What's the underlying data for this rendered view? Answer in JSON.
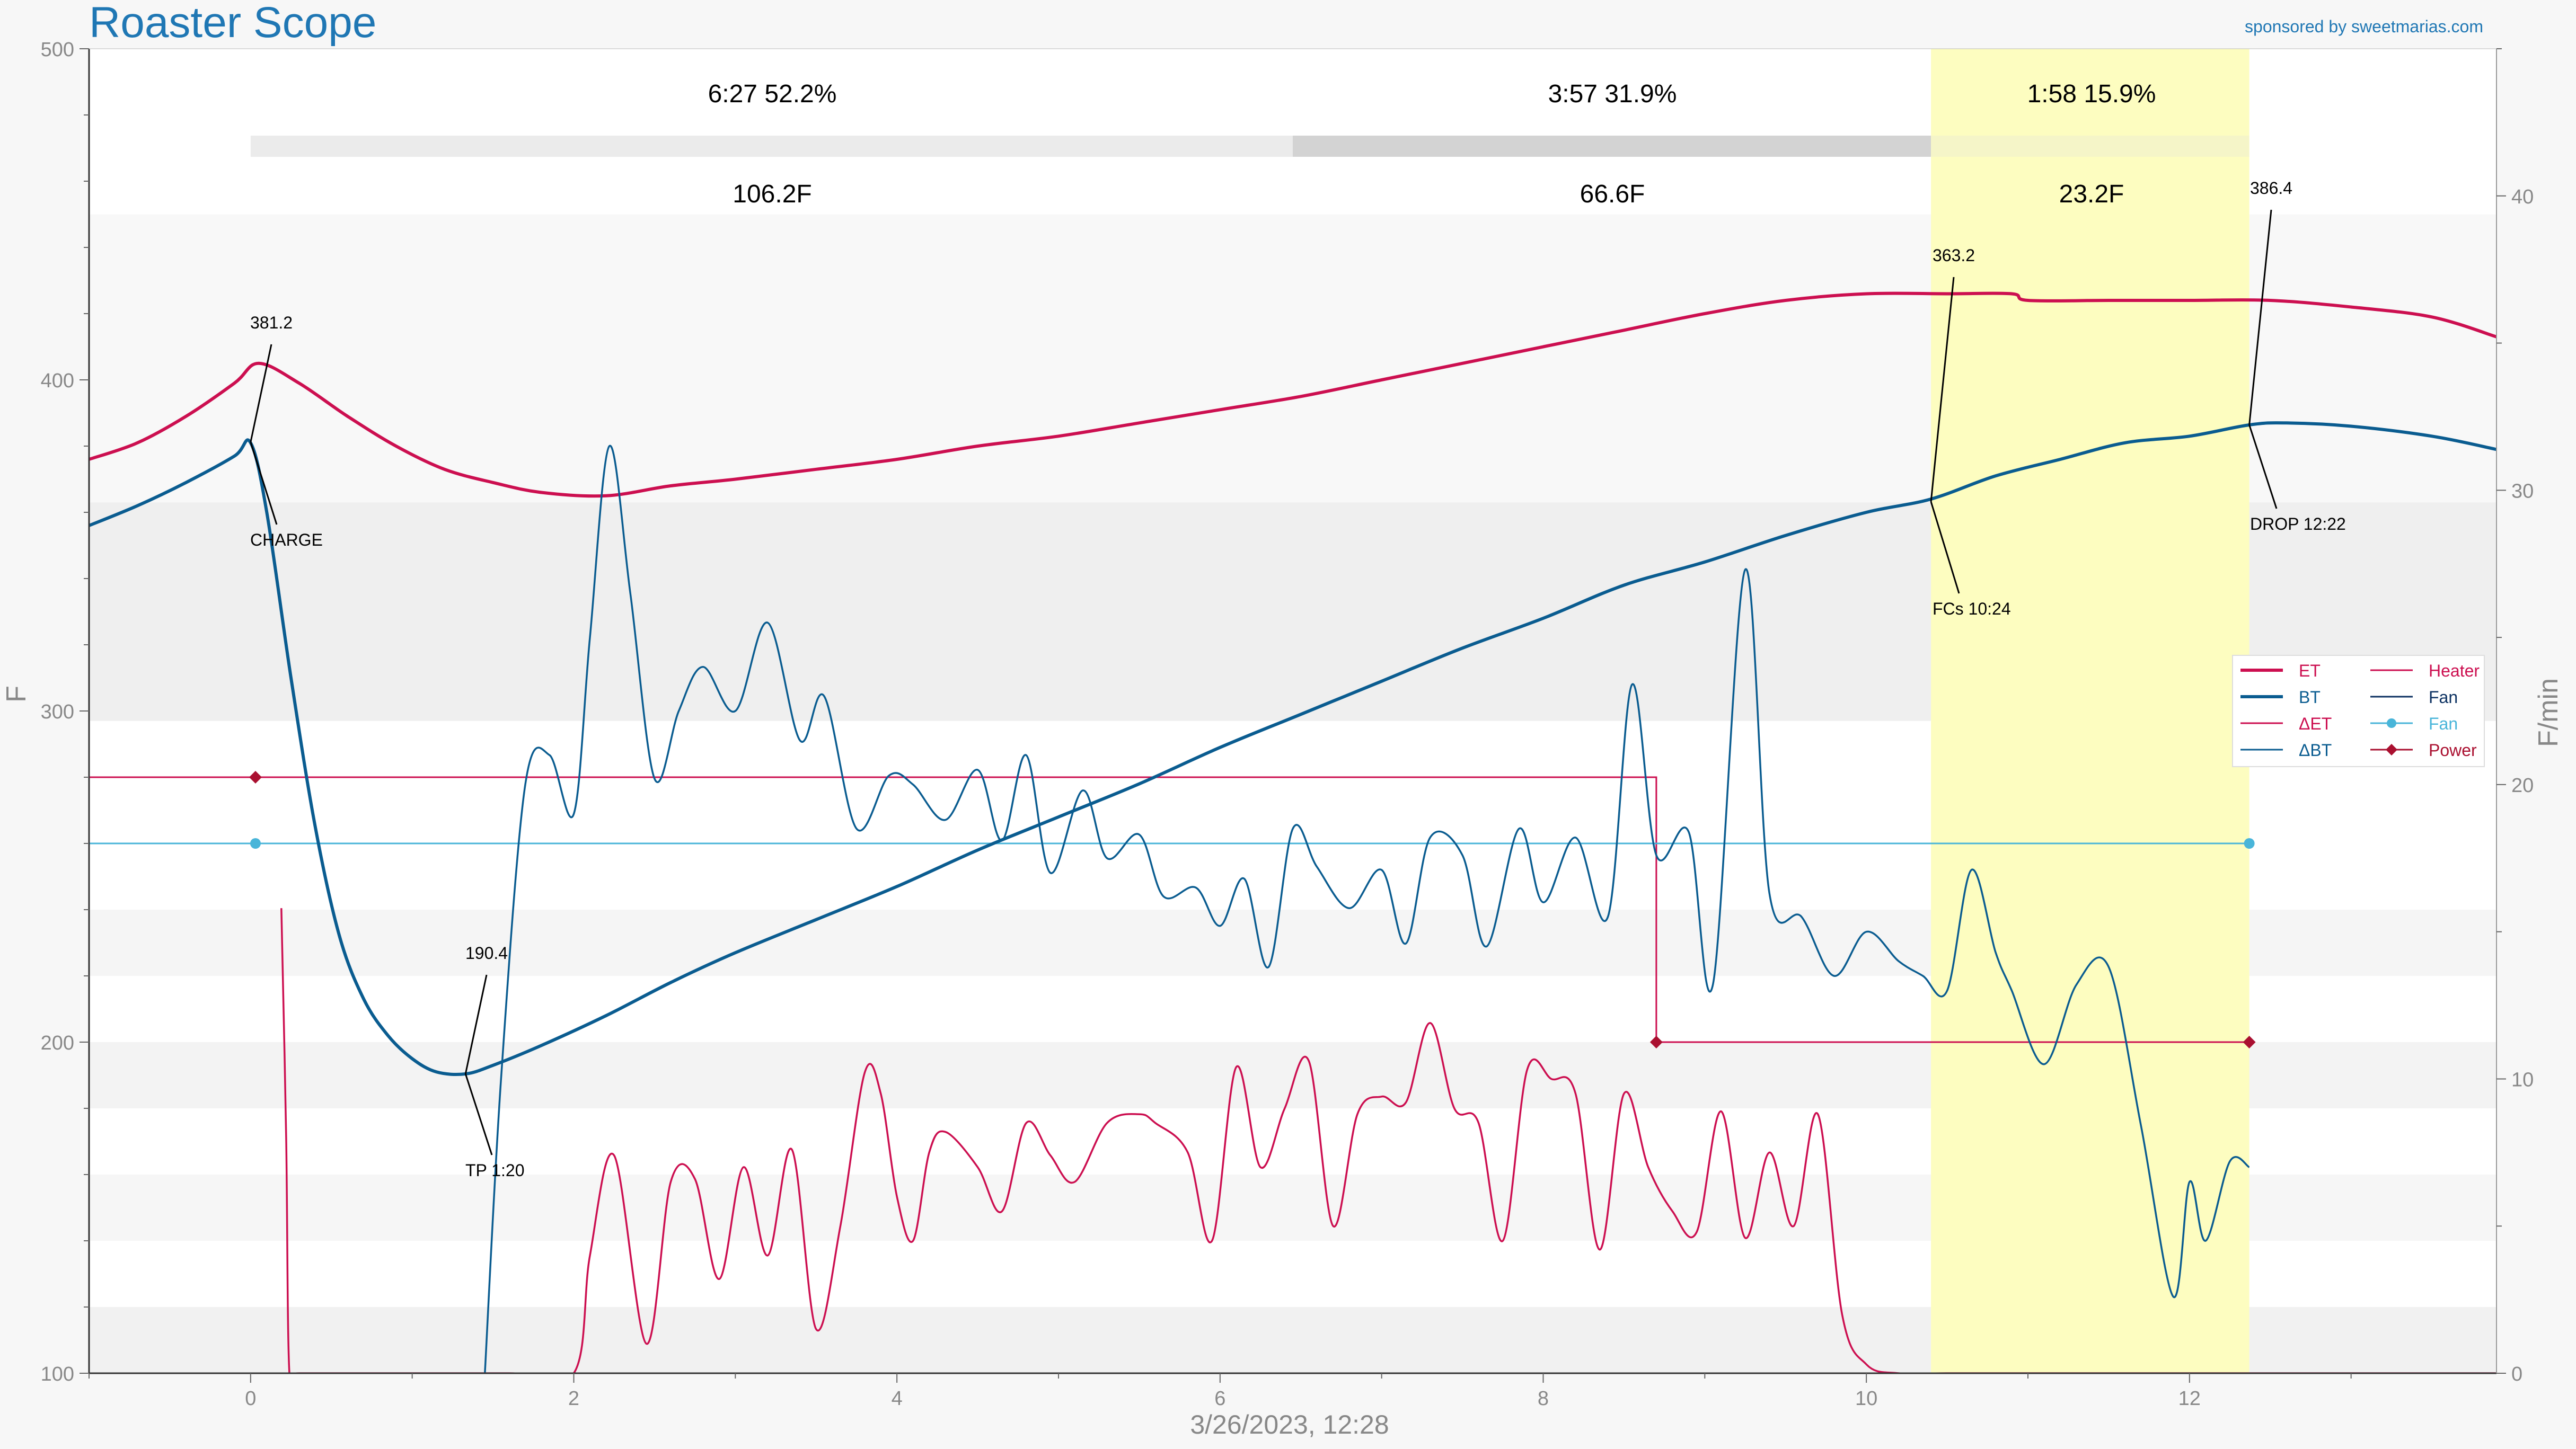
{
  "app": {
    "title": "Roaster Scope",
    "sponsor": "sponsored by sweetmarias.com",
    "timestamp": "3/26/2023, 12:28"
  },
  "colors": {
    "et": "#cc0f50",
    "bt": "#0a5c90",
    "delta_et": "#cc0f50",
    "delta_bt": "#0a5c90",
    "heater": "#cc0f50",
    "fan_control": "#0c3161",
    "fan": "#49b5d9",
    "power": "#aa1030",
    "title": "#1f77b4",
    "dev_band": "#fdfdc0"
  },
  "phases": [
    {
      "time": "6:27",
      "pct": "52.2%",
      "rise": "106.2F",
      "start": 0,
      "end": 6.45,
      "shade": "#ebebeb"
    },
    {
      "time": "3:57",
      "pct": "31.9%",
      "rise": "66.6F",
      "start": 6.45,
      "end": 10.4,
      "shade": "#d3d3d3"
    },
    {
      "time": "1:58",
      "pct": "15.9%",
      "rise": "23.2F",
      "start": 10.4,
      "end": 12.37,
      "shade": "#f5f5c8"
    }
  ],
  "events": [
    {
      "label": "CHARGE",
      "value": "381.2",
      "t": 0.0,
      "temp": 381.2
    },
    {
      "label": "TP 1:20",
      "value": "190.4",
      "t": 1.33,
      "temp": 190.4
    },
    {
      "label": "FCs 10:24",
      "value": "363.2",
      "t": 10.4,
      "temp": 363.2
    },
    {
      "label": "DROP 12:22",
      "value": "386.4",
      "t": 12.37,
      "temp": 386.4
    }
  ],
  "legend": [
    {
      "name": "ET",
      "key": "et",
      "marker": "line-thick"
    },
    {
      "name": "BT",
      "key": "bt",
      "marker": "line-thick"
    },
    {
      "name": "ΔET",
      "key": "delta_et",
      "marker": "line"
    },
    {
      "name": "ΔBT",
      "key": "delta_bt",
      "marker": "line"
    },
    {
      "name": "Heater",
      "key": "heater",
      "marker": "line"
    },
    {
      "name": "Fan",
      "key": "fan_control",
      "marker": "line"
    },
    {
      "name": "Fan",
      "key": "fan",
      "marker": "dot"
    },
    {
      "name": "Power",
      "key": "power",
      "marker": "diamond"
    }
  ],
  "chart_data": {
    "type": "line",
    "xlabel": "3/26/2023, 12:28",
    "ylabel": "F",
    "y2label": "F/min",
    "xlim": [
      -1,
      13.9
    ],
    "ylim": [
      100,
      500
    ],
    "y2lim": [
      0,
      45
    ],
    "xticks": [
      0,
      2,
      4,
      6,
      8,
      10,
      12
    ],
    "yticks": [
      100,
      200,
      300,
      400,
      500
    ],
    "y2ticks": [
      0,
      10,
      20,
      30,
      40
    ],
    "grid": false,
    "legend_position": "right",
    "series": [
      {
        "name": "ET",
        "axis": "left",
        "key": "et",
        "width": 6,
        "x": [
          -1,
          -0.7,
          -0.4,
          -0.1,
          0.05,
          0.3,
          0.6,
          0.9,
          1.2,
          1.5,
          1.8,
          2.2,
          2.6,
          3.0,
          3.5,
          4.0,
          4.5,
          5.0,
          5.5,
          6.0,
          6.5,
          7.0,
          7.5,
          8.0,
          8.5,
          9.0,
          9.5,
          10.0,
          10.5,
          10.9,
          11.0,
          11.5,
          12.0,
          12.5,
          13.0,
          13.5,
          13.9
        ],
        "y": [
          376,
          381,
          389,
          399,
          405,
          399,
          389,
          380,
          373,
          369,
          366,
          365,
          368,
          370,
          373,
          376,
          380,
          383,
          387,
          391,
          395,
          400,
          405,
          410,
          415,
          420,
          424,
          426,
          426,
          426,
          424,
          424,
          424,
          424,
          422,
          419,
          413
        ]
      },
      {
        "name": "BT",
        "axis": "left",
        "key": "bt",
        "width": 6,
        "x": [
          -1,
          -0.7,
          -0.4,
          -0.1,
          0.0,
          0.1,
          0.25,
          0.4,
          0.55,
          0.7,
          0.85,
          1.0,
          1.15,
          1.33,
          1.5,
          1.8,
          2.2,
          2.6,
          3.0,
          3.5,
          4.0,
          4.5,
          5.0,
          5.5,
          6.0,
          6.5,
          7.0,
          7.5,
          8.0,
          8.5,
          9.0,
          9.5,
          10.0,
          10.4,
          10.8,
          11.2,
          11.6,
          12.0,
          12.37,
          12.6,
          13.0,
          13.5,
          13.9
        ],
        "y": [
          356,
          362,
          369,
          377,
          381,
          360,
          310,
          265,
          232,
          213,
          202,
          195,
          191,
          190.4,
          193,
          199,
          208,
          218,
          227,
          237,
          247,
          258,
          268,
          278,
          289,
          299,
          309,
          319,
          328,
          338,
          345,
          353,
          360,
          364,
          371,
          376,
          381,
          383,
          386.4,
          387,
          386,
          383,
          379
        ]
      },
      {
        "name": "ΔET",
        "axis": "right",
        "key": "delta_et",
        "width": 3.5,
        "x": [
          0.19,
          0.22,
          0.24,
          0.3,
          1.6,
          2.0,
          2.1,
          2.25,
          2.45,
          2.6,
          2.75,
          2.9,
          3.05,
          3.2,
          3.35,
          3.5,
          3.65,
          3.8,
          3.9,
          4.0,
          4.1,
          4.2,
          4.3,
          4.5,
          4.65,
          4.8,
          4.95,
          5.1,
          5.3,
          5.5,
          5.6,
          5.8,
          5.95,
          6.1,
          6.25,
          6.4,
          6.55,
          6.7,
          6.85,
          7.0,
          7.15,
          7.3,
          7.45,
          7.6,
          7.75,
          7.9,
          8.05,
          8.2,
          8.35,
          8.5,
          8.65,
          8.8,
          8.95,
          9.1,
          9.25,
          9.4,
          9.55,
          9.7,
          9.85,
          10.0,
          10.2,
          10.5,
          11,
          12,
          13.9
        ],
        "y": [
          15.8,
          8,
          0,
          0,
          0,
          0,
          4,
          7.4,
          1.0,
          6.5,
          6.6,
          3.2,
          7.0,
          4.0,
          7.6,
          1.5,
          5.0,
          10.2,
          9.5,
          6.0,
          4.5,
          7.5,
          8.2,
          7.0,
          5.5,
          8.5,
          7.4,
          6.5,
          8.5,
          8.8,
          8.5,
          7.5,
          4.5,
          10.4,
          7.0,
          9.0,
          10.6,
          5.0,
          8.8,
          9.4,
          9.2,
          11.9,
          9.0,
          8.5,
          4.5,
          10.3,
          10.0,
          9.5,
          4.2,
          9.5,
          7.0,
          5.5,
          4.8,
          8.9,
          4.6,
          7.5,
          5.0,
          8.8,
          2.0,
          0.3,
          0,
          0,
          0,
          0,
          0
        ]
      },
      {
        "name": "ΔBT",
        "axis": "right",
        "key": "delta_bt",
        "width": 3.5,
        "x": [
          1.45,
          1.55,
          1.7,
          1.85,
          2.0,
          2.1,
          2.22,
          2.35,
          2.5,
          2.65,
          2.8,
          3.0,
          3.2,
          3.4,
          3.55,
          3.75,
          3.95,
          4.1,
          4.3,
          4.5,
          4.65,
          4.8,
          4.95,
          5.15,
          5.3,
          5.5,
          5.65,
          5.85,
          6.0,
          6.15,
          6.3,
          6.45,
          6.6,
          6.8,
          7.0,
          7.15,
          7.3,
          7.5,
          7.65,
          7.85,
          8.0,
          8.2,
          8.4,
          8.55,
          8.7,
          8.9,
          9.05,
          9.25,
          9.4,
          9.6,
          9.8,
          10.0,
          10.2,
          10.35,
          10.5,
          10.65,
          10.8,
          10.9,
          11.1,
          11.3,
          11.5,
          11.7,
          11.9,
          12.0,
          12.1,
          12.25,
          12.37
        ],
        "y": [
          0,
          10,
          20,
          21,
          19,
          25,
          31.5,
          26.5,
          20.2,
          22.5,
          24,
          22.5,
          25.5,
          21.5,
          23,
          18.5,
          20.3,
          20,
          18.8,
          20.5,
          18.1,
          21,
          17,
          19.8,
          17.5,
          18.3,
          16.2,
          16.5,
          15.2,
          16.8,
          13.8,
          18.5,
          17.2,
          15.8,
          17.1,
          14.6,
          18.2,
          17.6,
          14.5,
          18.5,
          16.0,
          18.2,
          15.5,
          23.4,
          17.6,
          18.4,
          13.2,
          27.3,
          16.3,
          15.5,
          13.5,
          15.0,
          14.0,
          13.5,
          13.0,
          17.1,
          14.3,
          13.0,
          10.5,
          13.2,
          13.8,
          8.4,
          2.6,
          6.5,
          4.5,
          7.2,
          7.0
        ]
      }
    ],
    "controls": [
      {
        "name": "Heater",
        "axis": "left",
        "key": "heater",
        "x": [
          -1,
          8.7,
          8.7,
          12.37
        ],
        "y": [
          280,
          280,
          200,
          200
        ]
      },
      {
        "name": "Fan",
        "axis": "left",
        "key": "fan",
        "x": [
          -1,
          12.37
        ],
        "y": [
          260,
          260
        ]
      },
      {
        "name": "Power",
        "axis": "left",
        "key": "power",
        "points": [
          {
            "x": 0.03,
            "y": 280
          },
          {
            "x": 8.7,
            "y": 200
          },
          {
            "x": 12.37,
            "y": 200
          }
        ]
      },
      {
        "name": "Fan",
        "axis": "left",
        "key": "fan",
        "points": [
          {
            "x": 0.03,
            "y": 260
          },
          {
            "x": 12.37,
            "y": 260
          }
        ]
      }
    ]
  }
}
